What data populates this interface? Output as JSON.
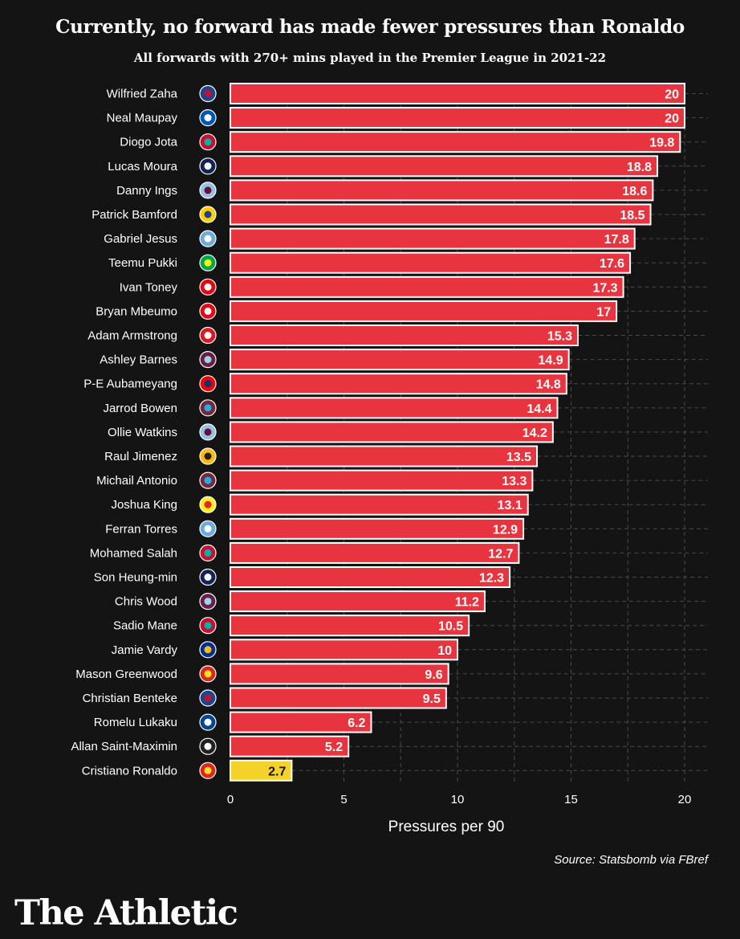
{
  "title": "Currently, no forward has made fewer pressures than Ronaldo",
  "subtitle": "All forwards with 270+ mins played in the Premier League in 2021-22",
  "source": "Source: Statsbomb via FBref",
  "brand": "The Athletic",
  "colors": {
    "background": "#141414",
    "bar": "#e8343f",
    "highlight": "#f5d22a",
    "grid": "#4a4a4a",
    "text": "#ffffff"
  },
  "chart_data": {
    "type": "bar",
    "orientation": "horizontal",
    "xlabel": "Pressures per 90",
    "xlim": [
      0,
      21
    ],
    "xticks": [
      0,
      5,
      10,
      15,
      20
    ],
    "highlighted": "Cristiano Ronaldo",
    "categories": [
      "Wilfried Zaha",
      "Neal Maupay",
      "Diogo Jota",
      "Lucas Moura",
      "Danny Ings",
      "Patrick Bamford",
      "Gabriel Jesus",
      "Teemu Pukki",
      "Ivan Toney",
      "Bryan Mbeumo",
      "Adam Armstrong",
      "Ashley Barnes",
      "P-E Aubameyang",
      "Jarrod Bowen",
      "Ollie Watkins",
      "Raul Jimenez",
      "Michail Antonio",
      "Joshua King",
      "Ferran Torres",
      "Mohamed Salah",
      "Son Heung-min",
      "Chris Wood",
      "Sadio Mane",
      "Jamie Vardy",
      "Mason Greenwood",
      "Christian Benteke",
      "Romelu Lukaku",
      "Allan Saint-Maximin",
      "Cristiano Ronaldo"
    ],
    "values": [
      20,
      20,
      19.8,
      18.8,
      18.6,
      18.5,
      17.8,
      17.6,
      17.3,
      17,
      15.3,
      14.9,
      14.8,
      14.4,
      14.2,
      13.5,
      13.3,
      13.1,
      12.9,
      12.7,
      12.3,
      11.2,
      10.5,
      10,
      9.6,
      9.5,
      6.2,
      5.2,
      2.7
    ],
    "value_labels": [
      "20",
      "20",
      "19.8",
      "18.8",
      "18.6",
      "18.5",
      "17.8",
      "17.6",
      "17.3",
      "17",
      "15.3",
      "14.9",
      "14.8",
      "14.4",
      "14.2",
      "13.5",
      "13.3",
      "13.1",
      "12.9",
      "12.7",
      "12.3",
      "11.2",
      "10.5",
      "10",
      "9.6",
      "9.5",
      "6.2",
      "5.2",
      "2.7"
    ],
    "club_badges": [
      {
        "icon": "crystal-palace-crest-icon",
        "fill": "#1b458f",
        "accent": "#c4122e"
      },
      {
        "icon": "brighton-crest-icon",
        "fill": "#0057b8",
        "accent": "#ffffff"
      },
      {
        "icon": "liverpool-crest-icon",
        "fill": "#c8102e",
        "accent": "#00b2a9"
      },
      {
        "icon": "tottenham-crest-icon",
        "fill": "#132257",
        "accent": "#ffffff"
      },
      {
        "icon": "aston-villa-crest-icon",
        "fill": "#95bfe5",
        "accent": "#670e36"
      },
      {
        "icon": "leeds-crest-icon",
        "fill": "#ffcd00",
        "accent": "#1d428a"
      },
      {
        "icon": "manchester-city-crest-icon",
        "fill": "#6cabdd",
        "accent": "#ffffff"
      },
      {
        "icon": "norwich-crest-icon",
        "fill": "#00a650",
        "accent": "#fff200"
      },
      {
        "icon": "brentford-crest-icon",
        "fill": "#e30613",
        "accent": "#ffffff"
      },
      {
        "icon": "brentford-crest-icon",
        "fill": "#e30613",
        "accent": "#ffffff"
      },
      {
        "icon": "southampton-crest-icon",
        "fill": "#d71920",
        "accent": "#ffffff"
      },
      {
        "icon": "burnley-crest-icon",
        "fill": "#6c1d45",
        "accent": "#99d6ea"
      },
      {
        "icon": "arsenal-crest-icon",
        "fill": "#ef0107",
        "accent": "#063672"
      },
      {
        "icon": "west-ham-crest-icon",
        "fill": "#7a263a",
        "accent": "#1bb1e7"
      },
      {
        "icon": "aston-villa-crest-icon",
        "fill": "#95bfe5",
        "accent": "#670e36"
      },
      {
        "icon": "wolves-crest-icon",
        "fill": "#fdb913",
        "accent": "#231f20"
      },
      {
        "icon": "west-ham-crest-icon",
        "fill": "#7a263a",
        "accent": "#1bb1e7"
      },
      {
        "icon": "watford-crest-icon",
        "fill": "#fbee23",
        "accent": "#ed2127"
      },
      {
        "icon": "manchester-city-crest-icon",
        "fill": "#6cabdd",
        "accent": "#ffffff"
      },
      {
        "icon": "liverpool-crest-icon",
        "fill": "#c8102e",
        "accent": "#00b2a9"
      },
      {
        "icon": "tottenham-crest-icon",
        "fill": "#132257",
        "accent": "#ffffff"
      },
      {
        "icon": "burnley-crest-icon",
        "fill": "#6c1d45",
        "accent": "#99d6ea"
      },
      {
        "icon": "liverpool-crest-icon",
        "fill": "#c8102e",
        "accent": "#00b2a9"
      },
      {
        "icon": "leicester-crest-icon",
        "fill": "#003090",
        "accent": "#fdbe11"
      },
      {
        "icon": "manchester-united-crest-icon",
        "fill": "#da291c",
        "accent": "#fbe122"
      },
      {
        "icon": "crystal-palace-crest-icon",
        "fill": "#1b458f",
        "accent": "#c4122e"
      },
      {
        "icon": "chelsea-crest-icon",
        "fill": "#034694",
        "accent": "#ffffff"
      },
      {
        "icon": "newcastle-crest-icon",
        "fill": "#241f20",
        "accent": "#ffffff"
      },
      {
        "icon": "manchester-united-crest-icon",
        "fill": "#da291c",
        "accent": "#fbe122"
      }
    ]
  }
}
